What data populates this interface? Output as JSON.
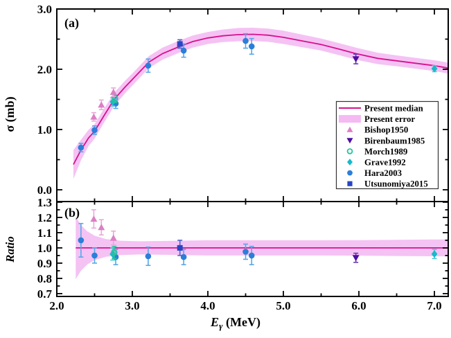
{
  "figure": {
    "panel_a_label": "(a)",
    "panel_b_label": "(b)",
    "ylabel_a": "σ (mb)",
    "ylabel_b": "Ratio",
    "xlabel": {
      "symbol": "E",
      "subscript": "γ",
      "unit": " (MeV)"
    }
  },
  "colors": {
    "median": "#d6118c",
    "band": "#f2aef0",
    "frame": "#000000",
    "text": "#000000"
  },
  "axes": {
    "x": {
      "min": 2.0,
      "max": 7.183,
      "major_ticks": [
        2.0,
        3.0,
        4.0,
        5.0,
        6.0,
        7.0
      ],
      "minor_ticks": [
        2.5,
        3.5,
        4.5,
        5.5,
        6.5
      ],
      "tick_labels": [
        "2.0",
        "3.0",
        "4.0",
        "5.0",
        "6.0",
        "7.0"
      ]
    },
    "ya": {
      "min": -0.195,
      "max": 3.0,
      "major_ticks": [
        0.0,
        1.0,
        2.0,
        3.0
      ],
      "minor_ticks": [
        0.5,
        1.5,
        2.5
      ],
      "tick_labels": [
        "0.0",
        "1.0",
        "2.0",
        "3.0"
      ]
    },
    "yb": {
      "min": 0.682,
      "max": 1.3,
      "major_ticks": [
        0.7,
        0.8,
        0.9,
        1.0,
        1.1,
        1.2,
        1.3
      ],
      "minor_ticks": [
        0.75,
        0.85,
        0.95,
        1.05,
        1.15,
        1.25
      ],
      "tick_labels": [
        "0.7",
        "0.8",
        "0.9",
        "1.0",
        "1.1",
        "1.2",
        "1.3"
      ]
    }
  },
  "series_meta": {
    "Hara2003": {
      "marker": "circle",
      "color": "#2b7fd9",
      "ecolor": "#55a8e8"
    },
    "Grave1992": {
      "marker": "diamond",
      "color": "#16bac8",
      "ecolor": "#4ccbd6"
    },
    "Morch1989": {
      "marker": "circle-open",
      "color": "#28c29e",
      "ecolor": "#28c29e"
    },
    "Utsunomiya2015": {
      "marker": "square",
      "color": "#2746c4",
      "ecolor": "#4a66cf"
    },
    "Bishop1950": {
      "marker": "triangle-up",
      "color": "#dc7fc4",
      "ecolor": "#eaa8d8"
    },
    "Birenbaum1985": {
      "marker": "triangle-down",
      "color": "#4c0da0",
      "ecolor": "#6b3ab5"
    }
  },
  "legend": {
    "entries": [
      {
        "label": "Present median",
        "type": "line"
      },
      {
        "label": "Present error",
        "type": "band"
      },
      {
        "label": "Bishop1950",
        "type": "marker",
        "series": "Bishop1950"
      },
      {
        "label": "Birenbaum1985",
        "type": "marker",
        "series": "Birenbaum1985"
      },
      {
        "label": "Morch1989",
        "type": "marker",
        "series": "Morch1989"
      },
      {
        "label": "Grave1992",
        "type": "marker",
        "series": "Grave1992"
      },
      {
        "label": "Hara2003",
        "type": "marker",
        "series": "Hara2003"
      },
      {
        "label": "Utsunomiya2015",
        "type": "marker",
        "series": "Utsunomiya2015"
      }
    ]
  },
  "chart_data": [
    {
      "type": "line",
      "panel": "a",
      "title": "(a)",
      "ylabel": "σ (mb)",
      "ylim": [
        -0.195,
        3.0
      ],
      "xlim": [
        2.0,
        7.183
      ],
      "median": {
        "x": [
          2.22,
          2.32,
          2.42,
          2.5,
          2.62,
          2.76,
          2.9,
          3.0,
          3.22,
          3.4,
          3.63,
          3.8,
          4.0,
          4.2,
          4.4,
          4.6,
          4.8,
          5.0,
          5.25,
          5.5,
          5.75,
          5.96,
          6.25,
          6.5,
          6.75,
          7.0,
          7.18
        ],
        "y": [
          0.42,
          0.66,
          0.86,
          0.97,
          1.22,
          1.5,
          1.7,
          1.83,
          2.12,
          2.26,
          2.38,
          2.46,
          2.52,
          2.555,
          2.575,
          2.58,
          2.565,
          2.53,
          2.47,
          2.41,
          2.33,
          2.26,
          2.18,
          2.14,
          2.1,
          2.06,
          2.02
        ],
        "band_half": [
          0.24,
          0.17,
          0.135,
          0.12,
          0.115,
          0.11,
          0.105,
          0.1,
          0.1,
          0.1,
          0.1,
          0.1,
          0.1,
          0.105,
          0.11,
          0.11,
          0.11,
          0.11,
          0.105,
          0.1,
          0.1,
          0.1,
          0.095,
          0.09,
          0.09,
          0.09,
          0.09
        ]
      },
      "series": [
        {
          "name": "Hara2003",
          "points": [
            [
              2.32,
              0.7,
              0.07
            ],
            [
              2.5,
              0.99,
              0.07
            ],
            [
              2.78,
              1.43,
              0.08
            ],
            [
              3.21,
              2.06,
              0.11
            ],
            [
              3.68,
              2.31,
              0.11
            ],
            [
              4.5,
              2.47,
              0.12
            ],
            [
              4.58,
              2.38,
              0.13
            ]
          ]
        },
        {
          "name": "Grave1992",
          "points": [
            [
              2.74,
              1.46,
              0.07
            ],
            [
              7.0,
              2.01,
              0.05
            ]
          ]
        },
        {
          "name": "Morch1989",
          "points": [
            [
              2.77,
              1.51,
              0.06
            ]
          ]
        },
        {
          "name": "Utsunomiya2015",
          "points": [
            [
              3.63,
              2.42,
              0.07
            ]
          ]
        },
        {
          "name": "Bishop1950",
          "points": [
            [
              2.49,
              1.21,
              0.07
            ],
            [
              2.59,
              1.41,
              0.08
            ],
            [
              2.75,
              1.62,
              0.07
            ]
          ]
        },
        {
          "name": "Birenbaum1985",
          "points": [
            [
              5.96,
              2.17,
              0.08
            ]
          ]
        }
      ]
    },
    {
      "type": "line",
      "panel": "b",
      "title": "(b)",
      "ylabel": "Ratio",
      "ylim": [
        0.682,
        1.3
      ],
      "xlim": [
        2.0,
        7.183
      ],
      "median": {
        "x": [
          2.25,
          2.32,
          2.4,
          2.5,
          2.65,
          2.85,
          3.1,
          3.5,
          4.0,
          4.5,
          5.0,
          5.5,
          6.0,
          6.5,
          7.0,
          7.183
        ],
        "y": [
          1.0,
          1.0,
          1.0,
          1.0,
          1.0,
          1.0,
          1.0,
          1.0,
          1.0,
          1.0,
          1.0,
          1.0,
          1.0,
          1.0,
          1.0,
          1.0
        ],
        "band_half": [
          0.205,
          0.15,
          0.11,
          0.08,
          0.058,
          0.047,
          0.043,
          0.046,
          0.05,
          0.05,
          0.05,
          0.05,
          0.051,
          0.053,
          0.055,
          0.056
        ]
      },
      "series": [
        {
          "name": "Hara2003",
          "points": [
            [
              2.32,
              1.05,
              0.11
            ],
            [
              2.5,
              0.95,
              0.05
            ],
            [
              2.78,
              0.94,
              0.05
            ],
            [
              3.21,
              0.945,
              0.06
            ],
            [
              3.68,
              0.94,
              0.05
            ],
            [
              4.5,
              0.975,
              0.05
            ],
            [
              4.58,
              0.95,
              0.06
            ]
          ]
        },
        {
          "name": "Grave1992",
          "points": [
            [
              2.74,
              0.96,
              0.04
            ],
            [
              7.0,
              0.96,
              0.03
            ]
          ]
        },
        {
          "name": "Morch1989",
          "points": [
            [
              2.76,
              0.97,
              0.04
            ]
          ]
        },
        {
          "name": "Utsunomiya2015",
          "points": [
            [
              3.63,
              1.0,
              0.05
            ]
          ]
        },
        {
          "name": "Bishop1950",
          "points": [
            [
              2.49,
              1.19,
              0.06
            ],
            [
              2.59,
              1.135,
              0.05
            ],
            [
              2.75,
              1.065,
              0.045
            ]
          ]
        },
        {
          "name": "Birenbaum1985",
          "points": [
            [
              5.96,
              0.935,
              0.03
            ]
          ]
        }
      ]
    }
  ]
}
